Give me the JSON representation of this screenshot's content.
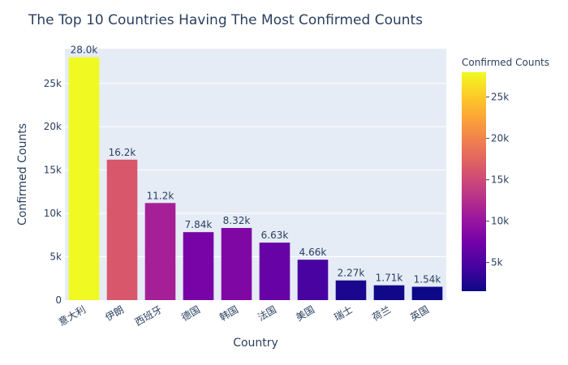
{
  "chart_data": {
    "type": "bar",
    "title": "The Top 10 Countries Having The Most Confirmed Counts",
    "xlabel": "Country",
    "ylabel": "Confirmed Counts",
    "ylim": [
      0,
      29000
    ],
    "yticks": [
      0,
      5000,
      10000,
      15000,
      20000,
      25000
    ],
    "ytick_labels": [
      "0",
      "5k",
      "10k",
      "15k",
      "20k",
      "25k"
    ],
    "grid": true,
    "categories": [
      "意大利",
      "伊朗",
      "西班牙",
      "德国",
      "韩国",
      "法国",
      "美国",
      "瑞士",
      "荷兰",
      "英国"
    ],
    "values": [
      28000,
      16200,
      11200,
      7840,
      8320,
      6630,
      4660,
      2270,
      1710,
      1540
    ],
    "data_labels": [
      "28.0k",
      "16.2k",
      "11.2k",
      "7.84k",
      "8.32k",
      "6.63k",
      "4.66k",
      "2.27k",
      "1.71k",
      "1.54k"
    ],
    "colorbar": {
      "title": "Confirmed Counts",
      "range": [
        1540,
        28000
      ],
      "ticks": [
        5000,
        10000,
        15000,
        20000,
        25000
      ],
      "tick_labels": [
        "5k",
        "10k",
        "15k",
        "20k",
        "25k"
      ],
      "colorscale": [
        "#0d0887",
        "#46039f",
        "#7201a8",
        "#9c179e",
        "#bd3786",
        "#d8576b",
        "#ed7953",
        "#fb9f3a",
        "#fdca26",
        "#f0f921"
      ]
    },
    "colors": {
      "plot_background": "#e5ecf6",
      "grid": "#ffffff",
      "text": "#2a3f5f"
    }
  }
}
